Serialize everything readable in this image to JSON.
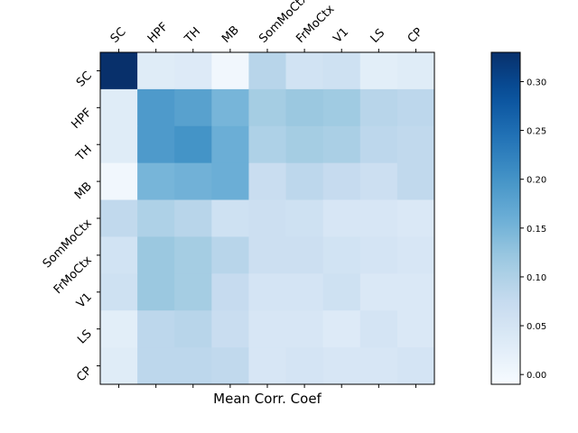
{
  "chart_data": {
    "type": "heatmap",
    "xlabel": "Mean Corr. Coef",
    "row_labels": [
      "SC",
      "HPF",
      "TH",
      "MB",
      "SomMoCtx",
      "FrMoCtx",
      "V1",
      "LS",
      "CP"
    ],
    "col_labels": [
      "SC",
      "HPF",
      "TH",
      "MB",
      "SomMoCtx",
      "FrMoCtx",
      "V1",
      "LS",
      "CP"
    ],
    "values": [
      [
        0.33,
        0.03,
        0.035,
        0.0,
        0.09,
        0.055,
        0.06,
        0.025,
        0.03
      ],
      [
        0.03,
        0.19,
        0.18,
        0.15,
        0.11,
        0.12,
        0.115,
        0.09,
        0.085
      ],
      [
        0.03,
        0.19,
        0.2,
        0.16,
        0.1,
        0.11,
        0.105,
        0.085,
        0.08
      ],
      [
        0.0,
        0.15,
        0.155,
        0.16,
        0.07,
        0.085,
        0.075,
        0.065,
        0.08
      ],
      [
        0.08,
        0.1,
        0.09,
        0.06,
        0.065,
        0.06,
        0.045,
        0.045,
        0.04
      ],
      [
        0.055,
        0.12,
        0.11,
        0.09,
        0.065,
        0.065,
        0.055,
        0.05,
        0.045
      ],
      [
        0.06,
        0.12,
        0.11,
        0.075,
        0.05,
        0.05,
        0.06,
        0.04,
        0.04
      ],
      [
        0.025,
        0.085,
        0.09,
        0.07,
        0.045,
        0.045,
        0.035,
        0.05,
        0.04
      ],
      [
        0.03,
        0.085,
        0.085,
        0.08,
        0.045,
        0.05,
        0.045,
        0.045,
        0.05
      ]
    ],
    "colorbar": {
      "min": -0.01,
      "max": 0.33,
      "ticks": [
        0.0,
        0.05,
        0.1,
        0.15,
        0.2,
        0.25,
        0.3
      ],
      "tick_labels": [
        "0.00",
        "0.05",
        "0.10",
        "0.15",
        "0.20",
        "0.25",
        "0.30"
      ],
      "colormap": "Blues",
      "placement": "right"
    }
  }
}
